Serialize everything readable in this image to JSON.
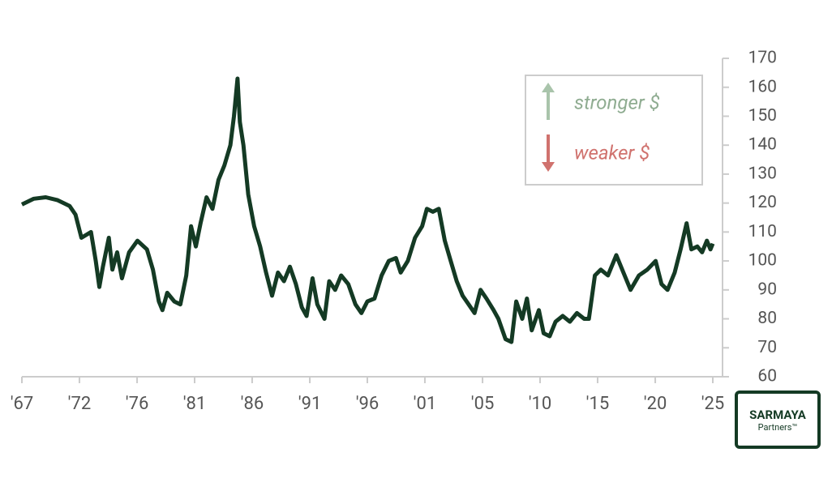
{
  "chart_data": {
    "type": "line",
    "x": [
      1967,
      1968,
      1969,
      1970,
      1971,
      1971.5,
      1972,
      1972.8,
      1973.2,
      1973.5,
      1973.8,
      1974.3,
      1974.6,
      1975,
      1975.4,
      1976,
      1976.7,
      1977.5,
      1978,
      1978.5,
      1978.8,
      1979.2,
      1979.8,
      1980.3,
      1980.8,
      1981.2,
      1981.6,
      1982,
      1982.5,
      1983,
      1983.5,
      1984,
      1984.5,
      1984.8,
      1985.1,
      1985.3,
      1985.6,
      1986,
      1986.5,
      1987,
      1987.5,
      1988,
      1988.5,
      1989,
      1989.5,
      1990,
      1990.5,
      1990.9,
      1991.4,
      1991.8,
      1992.4,
      1992.8,
      1993.3,
      1993.8,
      1994.4,
      1995,
      1995.5,
      1996,
      1996.6,
      1997.2,
      1997.8,
      1998.4,
      1998.8,
      1999.4,
      2000,
      2000.6,
      2001,
      2001.5,
      2002,
      2002.5,
      2003,
      2003.5,
      2004,
      2004.5,
      2005,
      2005.5,
      2006,
      2006.6,
      2007,
      2007.6,
      2008.1,
      2008.5,
      2009,
      2009.4,
      2009.8,
      2010.4,
      2010.8,
      2011.3,
      2011.8,
      2012.4,
      2013,
      2013.6,
      2014.2,
      2014.6,
      2015.1,
      2015.6,
      2016.2,
      2016.9,
      2017.5,
      2018.1,
      2018.8,
      2019.5,
      2020.2,
      2020.7,
      2021.2,
      2021.8,
      2022.3,
      2022.8,
      2023.2,
      2023.7,
      2024.1,
      2024.5,
      2024.8,
      2025
    ],
    "series": [
      {
        "color": "#143a24",
        "values": [
          119.5,
          121.5,
          122,
          121,
          119,
          116,
          108,
          110,
          100,
          91,
          98,
          108,
          97,
          103,
          94,
          103,
          107,
          104,
          97,
          86,
          83,
          89,
          86,
          85,
          95,
          112,
          105,
          113,
          122,
          118,
          128,
          133,
          140,
          150,
          163,
          148,
          140,
          123,
          112,
          105,
          96,
          88,
          96,
          93,
          98,
          92,
          84,
          81,
          94,
          85,
          80,
          93,
          90,
          95,
          92,
          85,
          82,
          86,
          87,
          95,
          100,
          101,
          96,
          100,
          108,
          112,
          118,
          117,
          118,
          107,
          100,
          93,
          88,
          85,
          82,
          90,
          87,
          83,
          80,
          73,
          72,
          86,
          80,
          87,
          76,
          83,
          75,
          74,
          79,
          81,
          79,
          82,
          80,
          80,
          95,
          97,
          95,
          102,
          96,
          90,
          95,
          97,
          100,
          92,
          90,
          96,
          104,
          113,
          104,
          105,
          103,
          107,
          104,
          106
        ]
      }
    ],
    "xlim": [
      1967,
      2025
    ],
    "xticks": [
      {
        "value": 1967,
        "label": "'67"
      },
      {
        "value": 1971.83,
        "label": "'72"
      },
      {
        "value": 1976.67,
        "label": "'76"
      },
      {
        "value": 1981.5,
        "label": "'81"
      },
      {
        "value": 1986.33,
        "label": "'86"
      },
      {
        "value": 1991.17,
        "label": "'91"
      },
      {
        "value": 1996,
        "label": "'96"
      },
      {
        "value": 2000.83,
        "label": "'01"
      },
      {
        "value": 2005.67,
        "label": "'05"
      },
      {
        "value": 2010.5,
        "label": "'10"
      },
      {
        "value": 2015.33,
        "label": "'15"
      },
      {
        "value": 2020.17,
        "label": "'20"
      },
      {
        "value": 2025,
        "label": "'25"
      }
    ],
    "ylim": [
      60,
      170
    ],
    "yticks": [
      60,
      70,
      80,
      90,
      100,
      110,
      120,
      130,
      140,
      150,
      160,
      170
    ],
    "annotations": [
      "stronger $",
      "weaker $"
    ],
    "logo": {
      "name": "SARMAYA",
      "tagline": "Partners™"
    }
  }
}
